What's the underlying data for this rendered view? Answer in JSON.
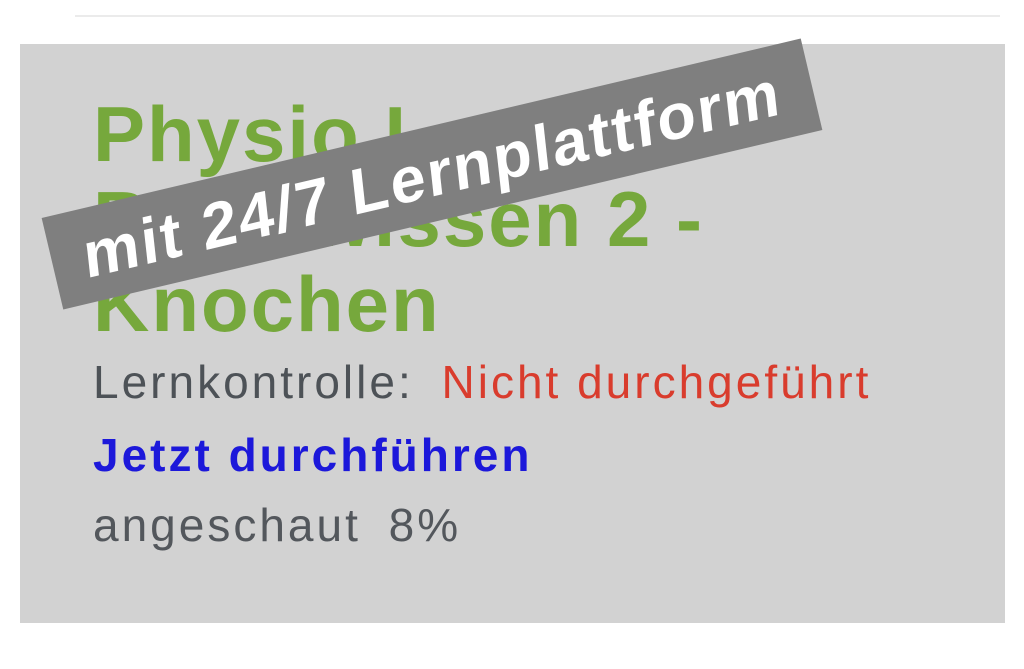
{
  "watermark": {
    "text": "mit 24/7 Lernplattform",
    "background_color": "#7f7f7f",
    "text_color": "#ffffff"
  },
  "card": {
    "background_color": "#d2d2d2",
    "title": {
      "lines": [
        "Physio I",
        "Basiswissen 2 -",
        "Knochen"
      ],
      "color": "#76a83c"
    },
    "lernkontrolle": {
      "label": "Lernkontrolle:",
      "label_color": "#4d5257",
      "status": "Nicht durchgeführt",
      "status_color": "#d93c2d"
    },
    "action_link": {
      "label": "Jetzt durchführen",
      "color": "#1c18da"
    },
    "progress": {
      "label": "angeschaut",
      "value": "8%",
      "color": "#53575c"
    }
  }
}
